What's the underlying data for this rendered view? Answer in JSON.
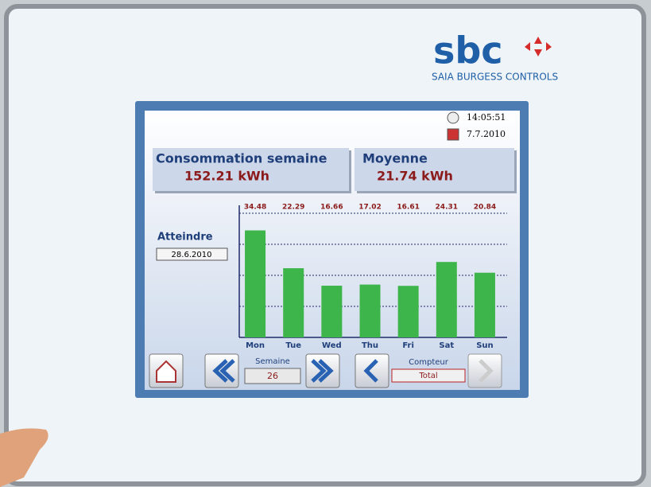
{
  "header": {
    "logo": "sbc",
    "tagline": "SAIA BURGESS CONTROLS"
  },
  "screen": {
    "time": "14:05:51",
    "date": "7.7.2010",
    "weekly": {
      "label": "Consommation semaine",
      "value": "152.21 kWh"
    },
    "average": {
      "label": "Moyenne",
      "value": "21.74 kWh"
    },
    "target": {
      "label": "Atteindre",
      "date": "28.6.2010"
    },
    "week": {
      "label": "Semaine",
      "value": "26"
    },
    "counter": {
      "label": "Compteur",
      "value": "Total"
    }
  },
  "chart_data": {
    "type": "bar",
    "categories": [
      "Mon",
      "Tue",
      "Wed",
      "Thu",
      "Fri",
      "Sat",
      "Sun"
    ],
    "values": [
      34.48,
      22.29,
      16.66,
      17.02,
      16.61,
      24.31,
      20.84
    ],
    "color": "#3db54a",
    "value_label_color": "#8b1a1a",
    "ylim": [
      0,
      40
    ],
    "yticks": [
      10,
      20,
      30,
      40
    ],
    "grid": true
  }
}
